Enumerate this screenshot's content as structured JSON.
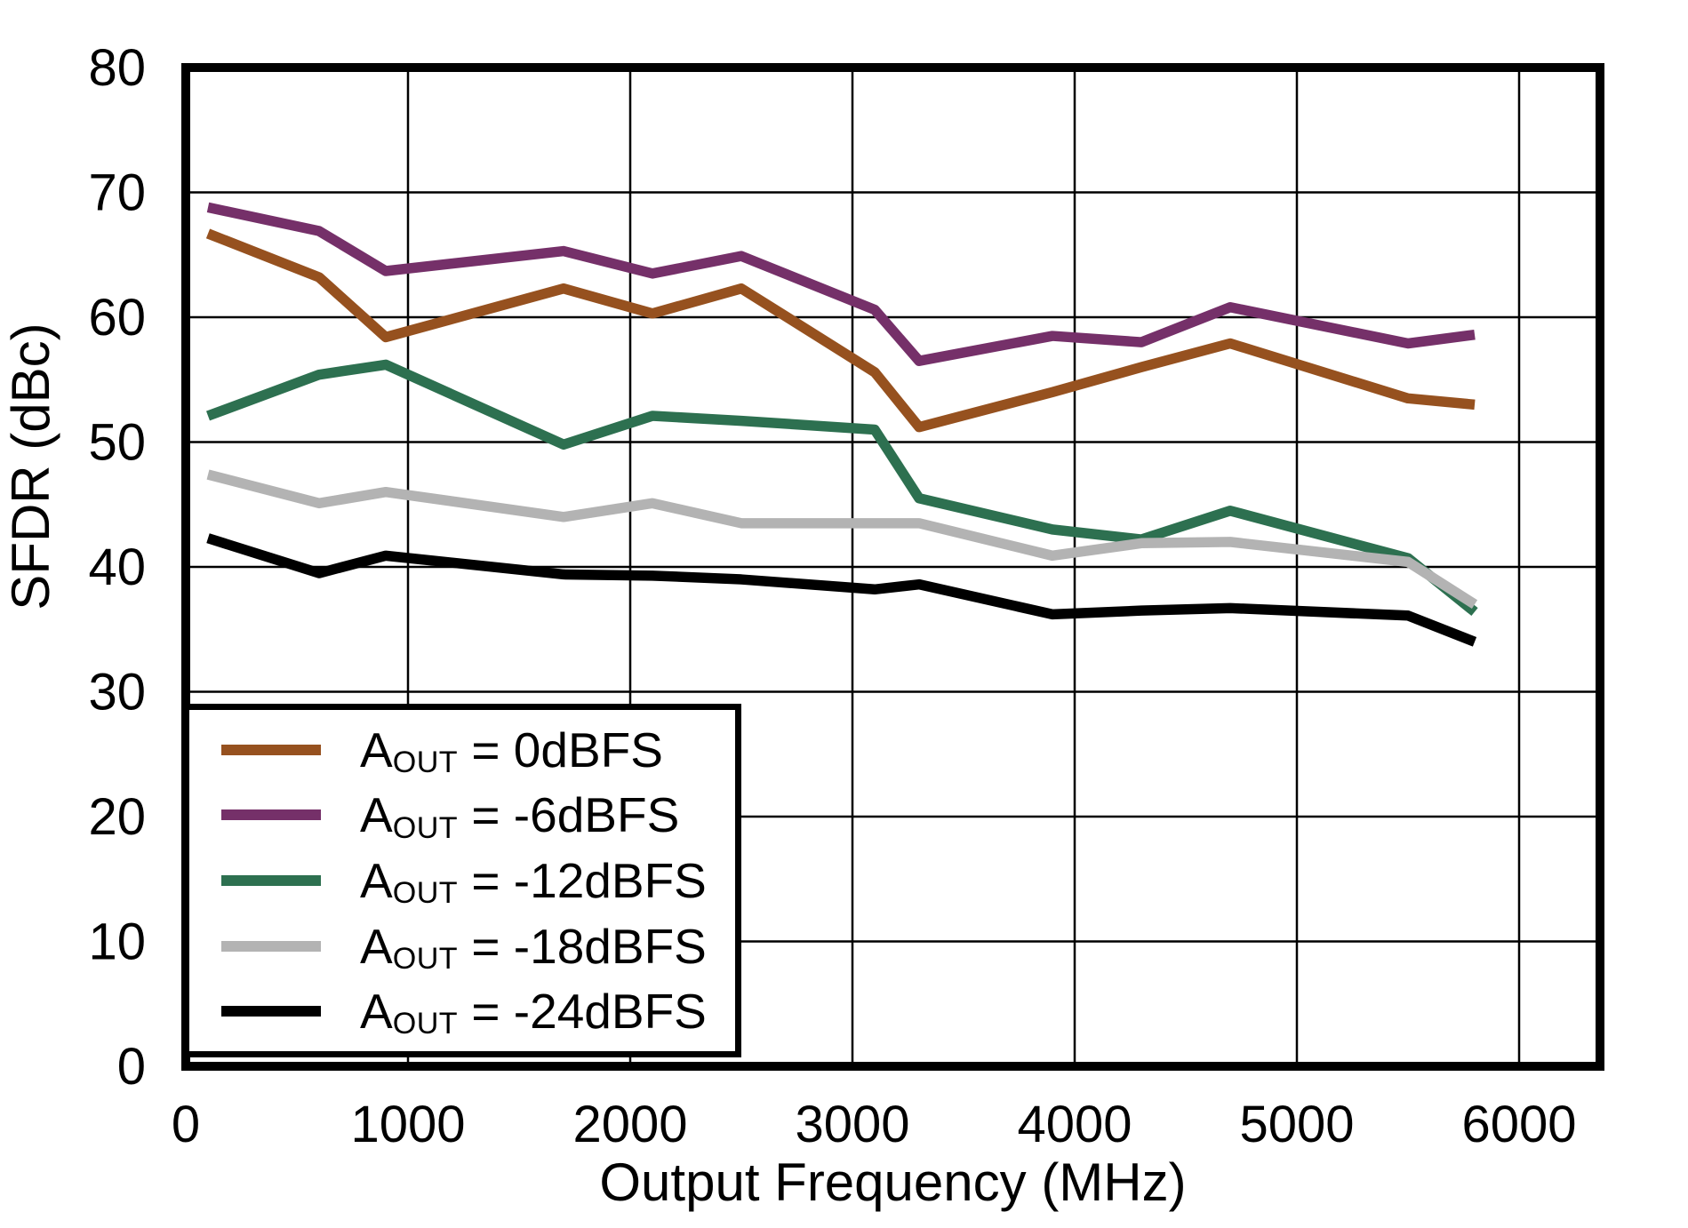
{
  "figure": {
    "xlabel": "Output Frequency (MHz)",
    "ylabel": "SFDR (dBc)"
  },
  "chart_data": {
    "type": "line",
    "title": "",
    "xlabel": "Output Frequency (MHz)",
    "ylabel": "SFDR (dBc)",
    "xlim": [
      0,
      6364
    ],
    "ylim": [
      0,
      80
    ],
    "xticks": [
      0,
      1000,
      2000,
      3000,
      4000,
      5000,
      6000
    ],
    "yticks": [
      0,
      10,
      20,
      30,
      40,
      50,
      60,
      70,
      80
    ],
    "grid": true,
    "legend_position": "lower-left",
    "x": [
      100,
      600,
      900,
      1700,
      2100,
      2500,
      3100,
      3300,
      3900,
      4300,
      4700,
      5500,
      5800
    ],
    "series": [
      {
        "key": "aout-0dbfs",
        "label_prefix": "A",
        "label_sub": "OUT",
        "label_suffix": " = 0dBFS",
        "color": "#96511F",
        "values": [
          66.7,
          63.2,
          58.4,
          62.3,
          60.3,
          62.3,
          55.6,
          51.2,
          54.0,
          56.0,
          57.9,
          53.5,
          53.0
        ]
      },
      {
        "key": "aout-minus6dbfs",
        "label_prefix": "A",
        "label_sub": "OUT",
        "label_suffix": " = -6dBFS",
        "color": "#753069",
        "values": [
          68.8,
          66.9,
          63.7,
          65.3,
          63.5,
          64.9,
          60.6,
          56.5,
          58.5,
          58.0,
          60.8,
          57.9,
          58.6
        ]
      },
      {
        "key": "aout-minus12dbfs",
        "label_prefix": "A",
        "label_sub": "OUT",
        "label_suffix": " = -12dBFS",
        "color": "#2D7050",
        "values": [
          52.1,
          55.4,
          56.2,
          49.8,
          52.1,
          51.7,
          51.0,
          45.5,
          43.0,
          42.2,
          44.5,
          40.7,
          36.4
        ]
      },
      {
        "key": "aout-minus18dbfs",
        "label_prefix": "A",
        "label_sub": "OUT",
        "label_suffix": " = -18dBFS",
        "color": "#B3B3B3",
        "values": [
          47.4,
          45.1,
          46.0,
          44.0,
          45.1,
          43.5,
          43.5,
          43.5,
          40.9,
          41.9,
          42.0,
          40.4,
          37.0
        ]
      },
      {
        "key": "aout-minus24dbfs",
        "label_prefix": "A",
        "label_sub": "OUT",
        "label_suffix": " = -24dBFS",
        "color": "#000000",
        "values": [
          42.3,
          39.5,
          40.9,
          39.4,
          39.3,
          39.0,
          38.2,
          38.6,
          36.2,
          36.5,
          36.7,
          36.1,
          34.0
        ]
      }
    ]
  }
}
